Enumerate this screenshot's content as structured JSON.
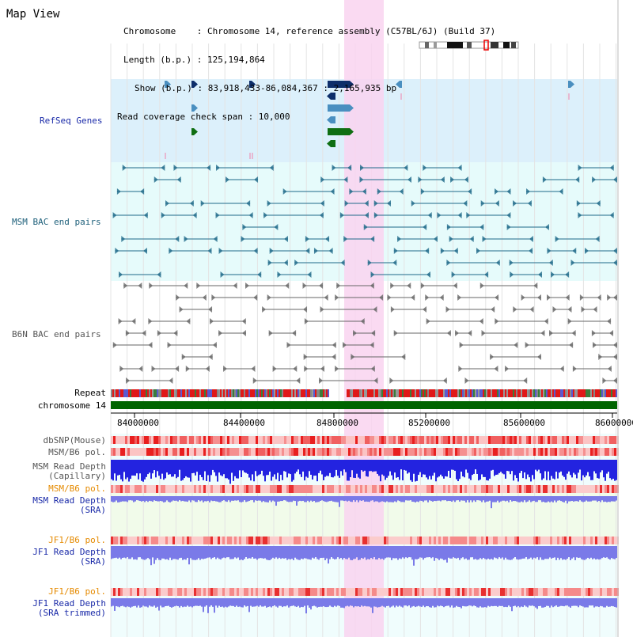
{
  "title": "Map View",
  "header": {
    "chromosome": "Chromosome    : Chromosome 14, reference assembly (C57BL/6J) (Build 37)",
    "length": "Length (b.p.) : 125,194,864",
    "show": "Show (b.p.) : 83,918,433-86,084,367 : 2,165,935 bp",
    "coverage": "Read coverage check span : 10,000"
  },
  "tracks": {
    "refseq": "RefSeq Genes",
    "msm_bac": "MSM BAC end pairs",
    "b6n_bac": "B6N BAC end pairs",
    "repeat": "Repeat",
    "chromosome": "chromosome 14",
    "dbsnp": "dbSNP(Mouse)",
    "msm_b6_pol_1": "MSM/B6 pol.",
    "msm_read_cap_1": "MSM Read Depth",
    "msm_read_cap_2": "(Capillary)",
    "msm_b6_pol_2": "MSM/B6 pol.",
    "msm_read_sra_1": "MSM Read Depth",
    "msm_read_sra_2": "(SRA)",
    "jf1_b6_pol_1": "JF1/B6 pol.",
    "jf1_read_sra_1": "JF1 Read Depth",
    "jf1_read_sra_2": "(SRA)",
    "jf1_b6_pol_2": "JF1/B6 pol.",
    "jf1_read_trim_1": "JF1 Read Depth",
    "jf1_read_trim_2": "(SRA trimmed)"
  },
  "axis": {
    "ticks": [
      "84000000",
      "84400000",
      "84800000",
      "85200000",
      "85600000",
      "86000000"
    ]
  },
  "colors": {
    "highlight": "#f9d3f0",
    "refseq_bg": "#dcf0fb",
    "bac_bg": "#e6fbfb",
    "gene_navy": "#0e2e6a",
    "gene_steel": "#4a8fc0",
    "gene_green": "#0f6e12",
    "msm_pair": "#1f6a8a",
    "b6n_pair": "#666666",
    "chromosome_bar": "#006400",
    "depth_blue": "#2323e0",
    "depth_violet": "#7a7ae8"
  }
}
